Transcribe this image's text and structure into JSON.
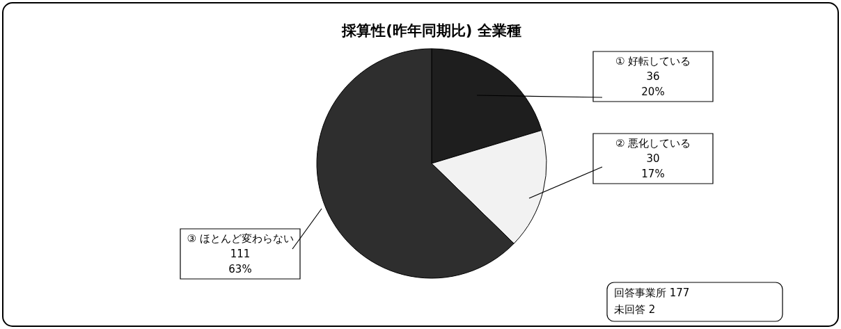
{
  "chart_data": {
    "type": "pie",
    "title": "採算性(昨年同期比) 全業種",
    "categories": [
      "① 好転している",
      "② 悪化している",
      "③ ほとんど変わらない"
    ],
    "values": [
      36,
      30,
      111
    ],
    "colors": [
      "#1e1e1e",
      "#f2f2f2",
      "#2e2e2e"
    ],
    "data_labels": true,
    "value_labels": [
      "36\n20%",
      "30\n17%",
      "111\n63%"
    ],
    "legend": false,
    "annotations": [
      "回答事業所 177",
      "未回答 2"
    ]
  }
}
